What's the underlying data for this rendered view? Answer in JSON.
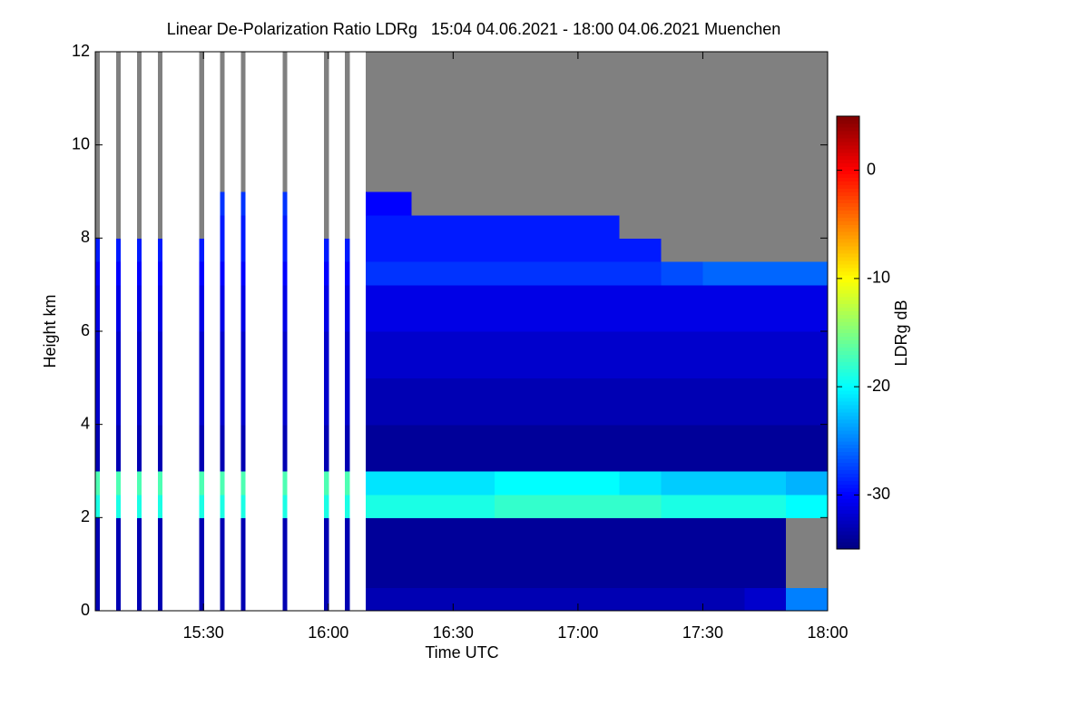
{
  "chart_data": {
    "type": "heatmap",
    "title": "Linear De-Polarization Ratio LDRg   15:04 04.06.2021 - 18:00 04.06.2021 Muenchen",
    "xlabel": "Time UTC",
    "ylabel": "Height km",
    "colorbar_label": "LDRg dB",
    "colormap": "jet",
    "no_signal_color": "#808080",
    "no_data_color": "#ffffff",
    "xlim": [
      15.0667,
      18.0
    ],
    "ylim": [
      0,
      12
    ],
    "zlim": [
      -35,
      5
    ],
    "xticks": [
      {
        "value": 15.5,
        "label": "15:30"
      },
      {
        "value": 16.0,
        "label": "16:00"
      },
      {
        "value": 16.5,
        "label": "16:30"
      },
      {
        "value": 17.0,
        "label": "17:00"
      },
      {
        "value": 17.5,
        "label": "17:30"
      },
      {
        "value": 18.0,
        "label": "18:00"
      }
    ],
    "yticks": [
      0,
      2,
      4,
      6,
      8,
      10,
      12
    ],
    "zticks": [
      0,
      -10,
      -20,
      -30
    ],
    "x_bins": [
      15.0667,
      15.0833,
      15.15,
      15.1667,
      15.2333,
      15.25,
      15.3167,
      15.3333,
      15.4833,
      15.5,
      15.5667,
      15.5833,
      15.65,
      15.6667,
      15.8167,
      15.8333,
      15.9833,
      16.0,
      16.0667,
      16.0833,
      16.15,
      16.3333,
      16.5,
      16.6667,
      16.8333,
      17.0,
      17.1667,
      17.3333,
      17.5,
      17.6667,
      17.8333,
      18.0
    ],
    "y_bins": [
      0,
      0.5,
      1,
      1.5,
      2,
      2.5,
      3,
      3.5,
      4,
      4.5,
      5,
      5.5,
      6,
      6.5,
      7,
      7.5,
      8,
      8.5,
      9,
      9.5,
      10,
      10.5,
      11,
      11.5,
      12
    ],
    "z": [
      [
        -33,
        -33,
        -33,
        -33,
        -19,
        -17,
        -33,
        -33,
        -32,
        -32,
        -32,
        -32,
        -31,
        -31,
        -30,
        -29,
        null,
        null,
        null,
        null,
        null,
        null,
        null,
        null
      ],
      null,
      [
        -33,
        -33,
        -33,
        -33,
        -19,
        -17,
        -33,
        -33,
        -32,
        -32,
        -32,
        -32,
        -31,
        -31,
        -30,
        -29,
        null,
        null,
        null,
        null,
        null,
        null,
        null,
        null
      ],
      null,
      [
        -33,
        -33,
        -33,
        -33,
        -19,
        -17,
        -33,
        -33,
        -32,
        -32,
        -32,
        -32,
        -31,
        -31,
        -30,
        -29,
        null,
        null,
        null,
        null,
        null,
        null,
        null,
        null
      ],
      null,
      [
        -33,
        -33,
        -33,
        -33,
        -19,
        -17,
        -33,
        -33,
        -32,
        -32,
        -32,
        -32,
        -31,
        -31,
        -30,
        -29,
        null,
        null,
        null,
        null,
        null,
        null,
        null,
        null
      ],
      null,
      [
        -33,
        -33,
        -33,
        -33,
        -19,
        -17,
        -33,
        -33,
        -32,
        -32,
        -32,
        -32,
        -31,
        -31,
        -30,
        -29,
        null,
        null,
        null,
        null,
        null,
        null,
        null,
        null
      ],
      null,
      [
        -33,
        -33,
        -33,
        -33,
        -19,
        -17,
        -33,
        -33,
        -32,
        -32,
        -32,
        -32,
        -31,
        -31,
        -30,
        -29,
        -29,
        -28,
        null,
        null,
        null,
        null,
        null,
        null
      ],
      null,
      [
        -33,
        -33,
        -33,
        -33,
        -19,
        -17,
        -33,
        -33,
        -32,
        -32,
        -32,
        -32,
        -31,
        -31,
        -30,
        -29,
        -29,
        -28,
        null,
        null,
        null,
        null,
        null,
        null
      ],
      null,
      [
        -33,
        -33,
        -33,
        -33,
        -19,
        -17,
        -33,
        -33,
        -32,
        -32,
        -32,
        -32,
        -31,
        -31,
        -30,
        -29,
        -29,
        -28,
        null,
        null,
        null,
        null,
        null,
        null
      ],
      null,
      [
        -33,
        -33,
        -33,
        -33,
        -19,
        -17,
        -33,
        -33,
        -32,
        -32,
        -32,
        -32,
        -31,
        -31,
        -30,
        -29,
        null,
        null,
        null,
        null,
        null,
        null,
        null,
        null
      ],
      null,
      [
        -33,
        -33,
        -33,
        -33,
        -19,
        -17,
        -33,
        -33,
        -32,
        -32,
        -32,
        -32,
        -31,
        -31,
        -30,
        -29,
        null,
        null,
        null,
        null,
        null,
        null,
        null,
        null
      ],
      null,
      [
        -33,
        -34,
        -34,
        -34,
        -19,
        -21,
        -34,
        -34,
        -33,
        -33,
        -32,
        -32,
        -31,
        -31,
        -28,
        -29,
        -29,
        -30,
        null,
        null,
        null,
        null,
        null,
        null
      ],
      [
        -33,
        -34,
        -34,
        -34,
        -19,
        -21,
        -34,
        -34,
        -33,
        -33,
        -32,
        -32,
        -31,
        -31,
        -28,
        -29,
        -29,
        null,
        null,
        null,
        null,
        null,
        null,
        null
      ],
      [
        -33,
        -34,
        -34,
        -34,
        -19,
        -21,
        -34,
        -34,
        -33,
        -33,
        -32,
        -32,
        -31,
        -31,
        -28,
        -29,
        -29,
        null,
        null,
        null,
        null,
        null,
        null,
        null
      ],
      [
        -33,
        -34,
        -34,
        -34,
        -18,
        -20,
        -34,
        -34,
        -33,
        -33,
        -32,
        -32,
        -31,
        -31,
        -28,
        -29,
        -29,
        null,
        null,
        null,
        null,
        null,
        null,
        null
      ],
      [
        -33,
        -34,
        -34,
        -34,
        -18,
        -20,
        -34,
        -34,
        -33,
        -33,
        -32,
        -32,
        -31,
        -31,
        -28,
        -29,
        -29,
        null,
        null,
        null,
        null,
        null,
        null,
        null
      ],
      [
        -33,
        -34,
        -34,
        -34,
        -18,
        -20,
        -34,
        -34,
        -33,
        -33,
        -32,
        -32,
        -31,
        -31,
        -28,
        -29,
        -29,
        null,
        null,
        null,
        null,
        null,
        null,
        null
      ],
      [
        -33,
        -34,
        -34,
        -34,
        -18,
        -21,
        -34,
        -34,
        -33,
        -33,
        -32,
        -32,
        -31,
        -31,
        -28,
        -29,
        null,
        null,
        null,
        null,
        null,
        null,
        null,
        null
      ],
      [
        -33,
        -34,
        -34,
        -34,
        -19,
        -22,
        -34,
        -34,
        -33,
        -33,
        -32,
        -32,
        -31,
        -31,
        -27,
        null,
        null,
        null,
        null,
        null,
        null,
        null,
        null,
        null
      ],
      [
        -33,
        -34,
        -34,
        -34,
        -19,
        -22,
        -34,
        -34,
        -33,
        -33,
        -32,
        -32,
        -31,
        -31,
        -26,
        null,
        null,
        null,
        null,
        null,
        null,
        null,
        null,
        null
      ],
      [
        -32,
        -34,
        -34,
        -34,
        -19,
        -22,
        -34,
        -34,
        -33,
        -33,
        -32,
        -32,
        -31,
        -31,
        -26,
        null,
        null,
        null,
        null,
        null,
        null,
        null,
        null,
        null
      ],
      [
        -25,
        null,
        null,
        null,
        -20,
        -23,
        -34,
        -34,
        -33,
        -33,
        -32,
        -32,
        -31,
        -31,
        -26,
        null,
        null,
        null,
        null,
        null,
        null,
        null,
        null,
        null
      ]
    ]
  }
}
